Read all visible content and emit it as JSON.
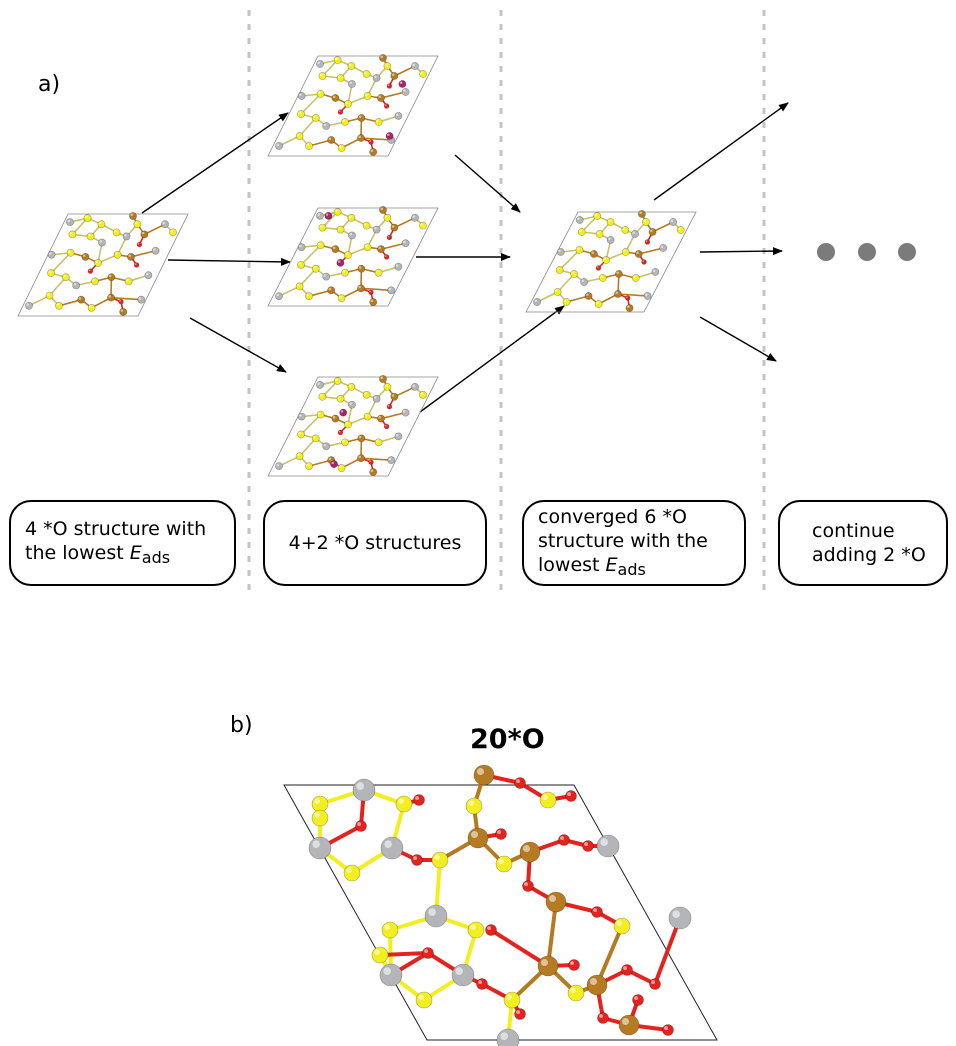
{
  "panel_a": {
    "label": "a)",
    "captions": [
      {
        "line1": "4 *O structure with",
        "line2_prefix": "the lowest ",
        "eads_symbol": "E",
        "eads_sub": "ads"
      },
      {
        "text": "4+2 *O structures"
      },
      {
        "line1": "converged 6 *O",
        "line2": "structure with the",
        "line3_prefix": "lowest ",
        "eads_symbol": "E",
        "eads_sub": "ads"
      },
      {
        "line1": "continue",
        "line2": "adding 2 *O"
      }
    ]
  },
  "panel_b": {
    "label": "b)",
    "title": "20*O"
  },
  "colors": {
    "sulfur": "#f2ee1f",
    "oxygen": "#e4231f",
    "titanium_gray": "#b4b5b8",
    "metal_bronze": "#b47b22",
    "new_oxygen": "#a8236c",
    "separator": "#c4c4c4",
    "dots": "#7b7b7b"
  }
}
